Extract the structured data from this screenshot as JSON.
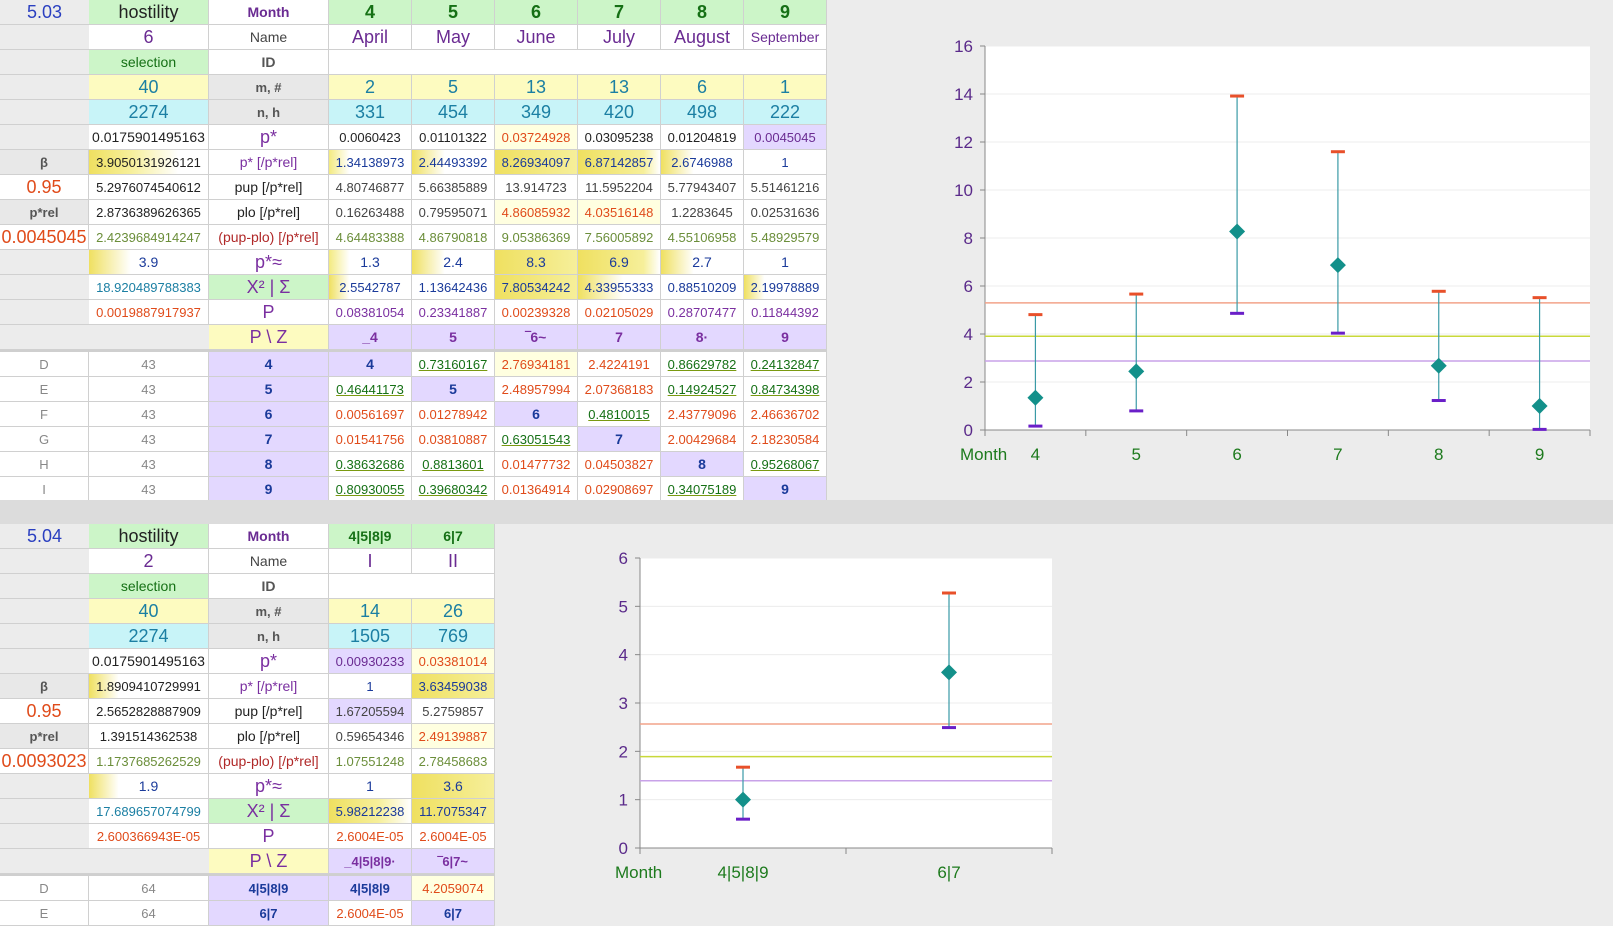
{
  "block1": {
    "id": "5.03",
    "header": {
      "col1": "hostility",
      "col2": "Month",
      "months_num": [
        "4",
        "5",
        "6",
        "7",
        "8",
        "9"
      ]
    },
    "name_row": {
      "count": "6",
      "label": "Name",
      "months": [
        "April",
        "May",
        "June",
        "July",
        "August",
        "September"
      ]
    },
    "selection_row": {
      "label": "selection",
      "id_label": "ID"
    },
    "mn_row": {
      "val": "40",
      "label": "m, #",
      "values": [
        "2",
        "5",
        "13",
        "13",
        "6",
        "1"
      ]
    },
    "nh_row": {
      "val": "2274",
      "label": "n, h",
      "values": [
        "331",
        "454",
        "349",
        "420",
        "498",
        "222"
      ]
    },
    "pstar_row": {
      "val": "0.0175901495163",
      "label": "p*",
      "values": [
        "0.0060423",
        "0.01101322",
        "0.03724928",
        "0.03095238",
        "0.01204819",
        "0.0045045"
      ]
    },
    "prel_row": {
      "side": "β",
      "val": "3.9050131926121",
      "label": "p* [/p*rel]",
      "values": [
        "1.34138973",
        "2.44493392",
        "8.26934097",
        "6.87142857",
        "2.6746988",
        "1"
      ]
    },
    "pup_row": {
      "side": "0.95",
      "val": "5.2976074540612",
      "label": "pup [/p*rel]",
      "values": [
        "4.80746877",
        "5.66385889",
        "13.914723",
        "11.5952204",
        "5.77943407",
        "5.51461216"
      ]
    },
    "plo_row": {
      "side": "p*rel",
      "val": "2.8736389626365",
      "label": "plo [/p*rel]",
      "values": [
        "0.16263488",
        "0.79595071",
        "4.86085932",
        "4.03516148",
        "1.2283645",
        "0.02531636"
      ]
    },
    "diff_row": {
      "side": "0.0045045",
      "val": "2.4239684914247",
      "label": "(pup-plo) [/p*rel]",
      "values": [
        "4.64483388",
        "4.86790818",
        "9.05386369",
        "7.56005892",
        "4.55106958",
        "5.48929579"
      ]
    },
    "approx_row": {
      "val": "3.9",
      "label": "p*≈",
      "values": [
        "1.3",
        "2.4",
        "8.3",
        "6.9",
        "2.7",
        "1"
      ]
    },
    "chi_row": {
      "val": "18.920489788383",
      "label": "X² | Σ",
      "values": [
        "2.5542787",
        "1.13642436",
        "7.80534242",
        "4.33955333",
        "0.88510209",
        "2.19978889"
      ]
    },
    "p_row": {
      "val": "0.0019887917937",
      "label": "P",
      "values": [
        "0.08381054",
        "0.23341887",
        "0.00239328",
        "0.02105029",
        "0.28707477",
        "0.11844392"
      ]
    },
    "pz_row": {
      "label": "P \\ Z",
      "values": [
        "_4",
        "5",
        "‾6~",
        "7",
        "8·",
        "9"
      ]
    },
    "matrix": [
      {
        "r": "D",
        "n": "43",
        "z": "4",
        "v": [
          "4",
          "0.73160167",
          "2.76934181",
          "2.4224191",
          "0.86629782",
          "0.24132847"
        ]
      },
      {
        "r": "E",
        "n": "43",
        "z": "5",
        "v": [
          "0.46441173",
          "5",
          "2.48957994",
          "2.07368183",
          "0.14924527",
          "0.84734398"
        ]
      },
      {
        "r": "F",
        "n": "43",
        "z": "6",
        "v": [
          "0.00561697",
          "0.01278942",
          "6",
          "0.4810015",
          "2.43779096",
          "2.46636702"
        ]
      },
      {
        "r": "G",
        "n": "43",
        "z": "7",
        "v": [
          "0.01541756",
          "0.03810887",
          "0.63051543",
          "7",
          "2.00429684",
          "2.18230584"
        ]
      },
      {
        "r": "H",
        "n": "43",
        "z": "8",
        "v": [
          "0.38632686",
          "0.8813601",
          "0.01477732",
          "0.04503827",
          "8",
          "0.95268067"
        ]
      },
      {
        "r": "I",
        "n": "43",
        "z": "9",
        "v": [
          "0.80930055",
          "0.39680342",
          "0.01364914",
          "0.02908697",
          "0.34075189",
          "9"
        ]
      }
    ]
  },
  "block2": {
    "id": "5.04",
    "header": {
      "col1": "hostility",
      "col2": "Month",
      "months_num": [
        "4|5|8|9",
        "6|7"
      ]
    },
    "name_row": {
      "count": "2",
      "label": "Name",
      "months": [
        "I",
        "II"
      ]
    },
    "selection_row": {
      "label": "selection",
      "id_label": "ID"
    },
    "mn_row": {
      "val": "40",
      "label": "m, #",
      "values": [
        "14",
        "26"
      ]
    },
    "nh_row": {
      "val": "2274",
      "label": "n, h",
      "values": [
        "1505",
        "769"
      ]
    },
    "pstar_row": {
      "val": "0.0175901495163",
      "label": "p*",
      "values": [
        "0.00930233",
        "0.03381014"
      ]
    },
    "prel_row": {
      "side": "β",
      "val": "1.8909410729991",
      "label": "p* [/p*rel]",
      "values": [
        "1",
        "3.63459038"
      ]
    },
    "pup_row": {
      "side": "0.95",
      "val": "2.5652828887909",
      "label": "pup [/p*rel]",
      "values": [
        "1.67205594",
        "5.2759857"
      ]
    },
    "plo_row": {
      "side": "p*rel",
      "val": "1.391514362538",
      "label": "plo [/p*rel]",
      "values": [
        "0.59654346",
        "2.49139887"
      ]
    },
    "diff_row": {
      "side": "0.0093023",
      "val": "1.1737685262529",
      "label": "(pup-plo) [/p*rel]",
      "values": [
        "1.07551248",
        "2.78458683"
      ]
    },
    "approx_row": {
      "val": "1.9",
      "label": "p*≈",
      "values": [
        "1",
        "3.6"
      ]
    },
    "chi_row": {
      "val": "17.689657074799",
      "label": "X² | Σ",
      "values": [
        "5.98212238",
        "11.7075347"
      ]
    },
    "p_row": {
      "val": "2.600366943E-05",
      "label": "P",
      "values": [
        "2.6004E-05",
        "2.6004E-05"
      ]
    },
    "pz_row": {
      "label": "P \\ Z",
      "values": [
        "_4|5|8|9·",
        "‾6|7~"
      ]
    },
    "matrix": [
      {
        "r": "D",
        "n": "64",
        "z": "4|5|8|9",
        "v": [
          "4|5|8|9",
          "4.2059074"
        ]
      },
      {
        "r": "E",
        "n": "64",
        "z": "6|7",
        "v": [
          "2.6004E-05",
          "6|7"
        ]
      }
    ]
  },
  "chart_data": [
    {
      "type": "scatter",
      "xlabel": "Month",
      "categories": [
        "4",
        "5",
        "6",
        "7",
        "8",
        "9"
      ],
      "ylim": [
        0,
        16
      ],
      "yticks": [
        0,
        2,
        4,
        6,
        8,
        10,
        12,
        14,
        16
      ],
      "series": [
        {
          "values": [
            1.34138973,
            2.44493392,
            8.26934097,
            6.87142857,
            2.6746988,
            1
          ]
        },
        {
          "values": [
            4.80746877,
            5.66385889,
            13.914723,
            11.5952204,
            5.77943407,
            5.51461216
          ]
        },
        {
          "values": [
            0.16263488,
            0.79595071,
            4.86085932,
            4.03516148,
            1.2283645,
            0.02531636
          ]
        }
      ],
      "hlines": [
        5.2976074540612,
        3.9050131926121,
        2.8736389626365
      ],
      "colors": {
        "point": "#13908a",
        "upper": "#e8502a",
        "lower": "#6a1fc8",
        "h_up": "#f2a38a",
        "h_mid": "#c8d83a",
        "h_lo": "#c8a2e8"
      }
    },
    {
      "type": "scatter",
      "xlabel": "Month",
      "categories": [
        "4|5|8|9",
        "6|7"
      ],
      "ylim": [
        0,
        6
      ],
      "yticks": [
        0,
        1,
        2,
        3,
        4,
        5,
        6
      ],
      "series": [
        {
          "values": [
            1,
            3.63459038
          ]
        },
        {
          "values": [
            1.67205594,
            5.2759857
          ]
        },
        {
          "values": [
            0.59654346,
            2.49139887
          ]
        }
      ],
      "hlines": [
        2.5652828887909,
        1.8909410729991,
        1.391514362538
      ],
      "colors": {
        "point": "#13908a",
        "upper": "#e8502a",
        "lower": "#6a1fc8",
        "h_up": "#f2a38a",
        "h_mid": "#c8d83a",
        "h_lo": "#c8a2e8"
      }
    }
  ]
}
